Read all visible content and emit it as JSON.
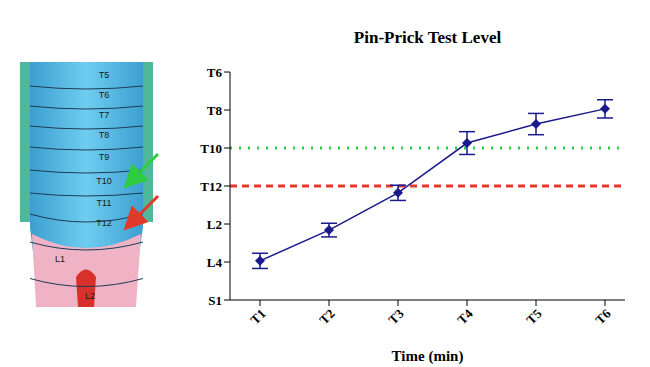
{
  "chart_data": {
    "type": "line",
    "title": "Pin-Prick Test Level",
    "x_label": "Time (min)",
    "categories": [
      "T1",
      "T2",
      "T3",
      "T4",
      "T5",
      "T6"
    ],
    "values": [
      1.03,
      1.84,
      2.82,
      4.13,
      4.63,
      5.03
    ],
    "errors": [
      0.2,
      0.18,
      0.2,
      0.3,
      0.28,
      0.24
    ],
    "color": "#1a1a8c",
    "marker": "diamond",
    "line_style": "solid",
    "ylim": [
      0,
      6
    ],
    "yticks": [
      {
        "value": 0,
        "label": "S1"
      },
      {
        "value": 1,
        "label": "L4"
      },
      {
        "value": 2,
        "label": "L2"
      },
      {
        "value": 3,
        "label": "T12"
      },
      {
        "value": 4,
        "label": "T10"
      },
      {
        "value": 5,
        "label": "T8"
      },
      {
        "value": 6,
        "label": "T6"
      }
    ],
    "grid": false,
    "reference_lines": [
      {
        "value": 4,
        "color": "#2ecc40",
        "line_style": "dotted"
      },
      {
        "value": 3,
        "color": "#e23a2a",
        "line_style": "dashed"
      }
    ]
  },
  "illustration": {
    "dermatome_labels": [
      "T5",
      "T6",
      "T7",
      "T8",
      "T9",
      "T10",
      "T11",
      "T12",
      "L1",
      "L2"
    ],
    "arrows": [
      {
        "target": "T10",
        "color": "#2ecc40"
      },
      {
        "target": "T12",
        "color": "#e23a2a"
      }
    ]
  }
}
